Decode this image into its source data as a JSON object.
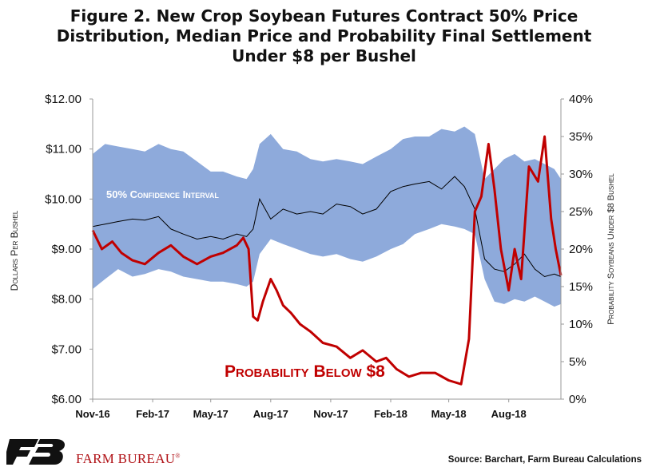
{
  "title_lines": [
    "Figure 2. New Crop Soybean Futures Contract 50% Price",
    "Distribution, Median Price and Probability Final Settlement",
    "Under $8 per Bushel"
  ],
  "footer": {
    "brand": "FARM BUREAU",
    "registered_mark": "®",
    "source": "Source: Barchart, Farm Bureau Calculations"
  },
  "colors": {
    "band": "#8eaadb",
    "median": "#000000",
    "probability": "#c00000",
    "brand": "#b01116"
  },
  "chart_data": {
    "type": "line",
    "x_labels": [
      "Nov-16",
      "Feb-17",
      "May-17",
      "Aug-17",
      "Nov-17",
      "Feb-18",
      "May-18",
      "Aug-18"
    ],
    "x_range": [
      "2016-11-01",
      "2018-10-20"
    ],
    "y_left": {
      "label": "Dollars Per Bushel",
      "range": [
        6,
        12
      ],
      "ticks": [
        "$6.00",
        "$7.00",
        "$8.00",
        "$9.00",
        "$10.00",
        "$11.00",
        "$12.00"
      ]
    },
    "y_right": {
      "label": "Probability Soybeans Under $8 Bushel",
      "range": [
        0,
        40
      ],
      "ticks": [
        "0%",
        "5%",
        "10%",
        "15%",
        "20%",
        "25%",
        "30%",
        "35%",
        "40%"
      ]
    },
    "annotations": {
      "band_label": "50% Confidence Interval",
      "prob_label": "Probability Below $8"
    },
    "series": [
      {
        "name": "50% Confidence Interval",
        "kind": "band",
        "axis": "left",
        "dates": [
          "2016-11-01",
          "2016-11-20",
          "2016-12-10",
          "2017-01-01",
          "2017-01-20",
          "2017-02-10",
          "2017-03-01",
          "2017-03-20",
          "2017-04-10",
          "2017-05-01",
          "2017-05-20",
          "2017-06-10",
          "2017-06-25",
          "2017-07-05",
          "2017-07-15",
          "2017-08-01",
          "2017-08-20",
          "2017-09-10",
          "2017-10-01",
          "2017-10-20",
          "2017-11-10",
          "2017-12-01",
          "2017-12-20",
          "2018-01-10",
          "2018-02-01",
          "2018-02-20",
          "2018-03-10",
          "2018-04-01",
          "2018-04-20",
          "2018-05-10",
          "2018-05-25",
          "2018-06-10",
          "2018-06-25",
          "2018-07-10",
          "2018-07-25",
          "2018-08-10",
          "2018-08-25",
          "2018-09-10",
          "2018-09-25",
          "2018-10-10",
          "2018-10-20"
        ],
        "low": [
          8.2,
          8.4,
          8.6,
          8.45,
          8.5,
          8.6,
          8.55,
          8.45,
          8.4,
          8.35,
          8.35,
          8.3,
          8.25,
          8.35,
          8.9,
          9.2,
          9.1,
          9.0,
          8.9,
          8.85,
          8.9,
          8.8,
          8.75,
          8.85,
          9.0,
          9.1,
          9.3,
          9.4,
          9.5,
          9.45,
          9.4,
          9.3,
          8.4,
          7.95,
          7.9,
          8.0,
          7.95,
          8.05,
          7.95,
          7.85,
          7.9
        ],
        "high": [
          10.9,
          11.1,
          11.05,
          11.0,
          10.95,
          11.1,
          11.0,
          10.95,
          10.75,
          10.55,
          10.55,
          10.45,
          10.4,
          10.6,
          11.1,
          11.3,
          11.0,
          10.95,
          10.8,
          10.75,
          10.8,
          10.75,
          10.7,
          10.85,
          11.0,
          11.2,
          11.25,
          11.25,
          11.4,
          11.35,
          11.45,
          11.3,
          10.4,
          10.6,
          10.8,
          10.9,
          10.75,
          10.8,
          10.7,
          10.6,
          10.4
        ]
      },
      {
        "name": "Median Price",
        "kind": "line",
        "axis": "left",
        "dates": [
          "2016-11-01",
          "2016-11-20",
          "2016-12-10",
          "2017-01-01",
          "2017-01-20",
          "2017-02-10",
          "2017-03-01",
          "2017-03-20",
          "2017-04-10",
          "2017-05-01",
          "2017-05-20",
          "2017-06-10",
          "2017-06-25",
          "2017-07-05",
          "2017-07-15",
          "2017-08-01",
          "2017-08-20",
          "2017-09-10",
          "2017-10-01",
          "2017-10-20",
          "2017-11-10",
          "2017-12-01",
          "2017-12-20",
          "2018-01-10",
          "2018-02-01",
          "2018-02-20",
          "2018-03-10",
          "2018-04-01",
          "2018-04-20",
          "2018-05-10",
          "2018-05-25",
          "2018-06-10",
          "2018-06-25",
          "2018-07-10",
          "2018-07-25",
          "2018-08-10",
          "2018-08-25",
          "2018-09-10",
          "2018-09-25",
          "2018-10-10",
          "2018-10-20"
        ],
        "values": [
          9.45,
          9.5,
          9.55,
          9.6,
          9.58,
          9.65,
          9.4,
          9.3,
          9.2,
          9.25,
          9.2,
          9.3,
          9.25,
          9.4,
          10.0,
          9.6,
          9.8,
          9.7,
          9.75,
          9.7,
          9.9,
          9.85,
          9.7,
          9.8,
          10.15,
          10.25,
          10.3,
          10.35,
          10.2,
          10.45,
          10.25,
          9.8,
          8.8,
          8.6,
          8.55,
          8.7,
          8.9,
          8.6,
          8.45,
          8.5,
          8.45
        ]
      },
      {
        "name": "Probability Below $8",
        "kind": "line",
        "axis": "right",
        "dates": [
          "2016-11-01",
          "2016-11-15",
          "2016-12-01",
          "2016-12-15",
          "2017-01-01",
          "2017-01-20",
          "2017-02-10",
          "2017-03-01",
          "2017-03-20",
          "2017-04-10",
          "2017-05-01",
          "2017-05-20",
          "2017-06-10",
          "2017-06-20",
          "2017-06-28",
          "2017-07-05",
          "2017-07-12",
          "2017-07-20",
          "2017-08-01",
          "2017-08-10",
          "2017-08-20",
          "2017-09-01",
          "2017-09-15",
          "2017-10-01",
          "2017-10-20",
          "2017-11-10",
          "2017-12-01",
          "2017-12-20",
          "2018-01-10",
          "2018-01-25",
          "2018-02-10",
          "2018-03-01",
          "2018-03-20",
          "2018-04-10",
          "2018-05-01",
          "2018-05-20",
          "2018-06-01",
          "2018-06-10",
          "2018-06-20",
          "2018-07-01",
          "2018-07-10",
          "2018-07-20",
          "2018-08-01",
          "2018-08-10",
          "2018-08-20",
          "2018-09-01",
          "2018-09-15",
          "2018-09-25",
          "2018-10-05",
          "2018-10-12",
          "2018-10-20"
        ],
        "values": [
          22.5,
          20.0,
          21.0,
          19.5,
          18.5,
          18.0,
          19.5,
          20.5,
          19.0,
          18.0,
          19.0,
          19.5,
          20.5,
          21.5,
          20.0,
          11.0,
          10.5,
          13.0,
          16.0,
          14.5,
          12.5,
          11.5,
          10.0,
          9.0,
          7.5,
          7.0,
          5.5,
          6.5,
          5.0,
          5.5,
          4.0,
          3.0,
          3.5,
          3.5,
          2.5,
          2.0,
          8.0,
          25.0,
          27.0,
          34.0,
          28.0,
          20.0,
          14.5,
          20.0,
          16.0,
          31.0,
          29.0,
          35.0,
          24.0,
          20.0,
          16.5
        ]
      }
    ]
  }
}
